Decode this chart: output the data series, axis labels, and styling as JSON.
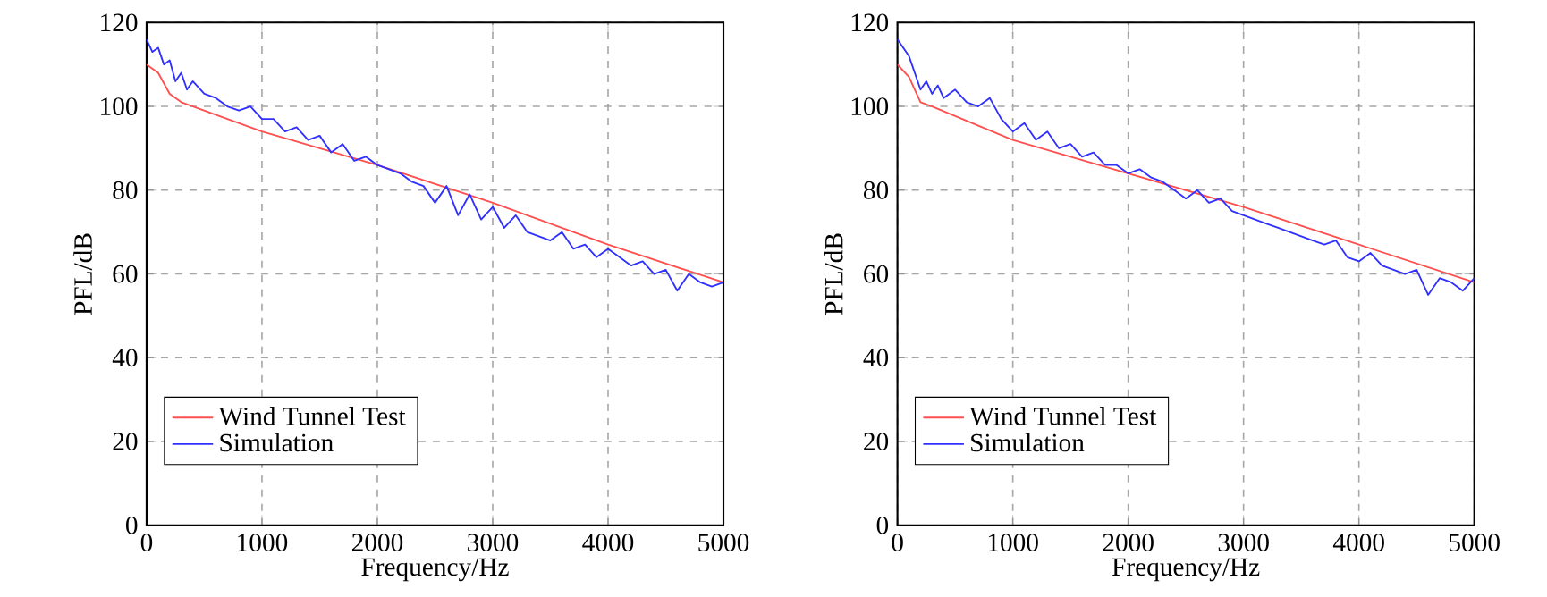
{
  "chart_data": [
    {
      "type": "line",
      "xlabel": "Frequency/Hz",
      "ylabel": "PFL/dB",
      "xlim": [
        0,
        5000
      ],
      "ylim": [
        0,
        120
      ],
      "xticks": [
        0,
        1000,
        2000,
        3000,
        4000,
        5000
      ],
      "yticks": [
        0,
        20,
        40,
        60,
        80,
        100,
        120
      ],
      "grid": true,
      "legend": "bottom left",
      "series": [
        {
          "name": "Wind Tunnel Test",
          "color": "#ff5050",
          "x": [
            0,
            100,
            200,
            300,
            1000,
            2000,
            3000,
            4000,
            5000
          ],
          "values": [
            110,
            108,
            103,
            101,
            94,
            86,
            77,
            67,
            58
          ]
        },
        {
          "name": "Simulation",
          "color": "#3030ff",
          "x": [
            0,
            50,
            100,
            150,
            200,
            250,
            300,
            350,
            400,
            500,
            600,
            700,
            800,
            900,
            1000,
            1100,
            1200,
            1300,
            1400,
            1500,
            1600,
            1700,
            1800,
            1900,
            2000,
            2100,
            2200,
            2300,
            2400,
            2500,
            2600,
            2700,
            2800,
            2900,
            3000,
            3100,
            3200,
            3300,
            3400,
            3500,
            3600,
            3700,
            3800,
            3900,
            4000,
            4100,
            4200,
            4300,
            4400,
            4500,
            4600,
            4700,
            4800,
            4900,
            5000
          ],
          "values": [
            116,
            113,
            114,
            110,
            111,
            106,
            108,
            104,
            106,
            103,
            102,
            100,
            99,
            100,
            97,
            97,
            94,
            95,
            92,
            93,
            89,
            91,
            87,
            88,
            86,
            85,
            84,
            82,
            81,
            77,
            81,
            74,
            79,
            73,
            76,
            71,
            74,
            70,
            69,
            68,
            70,
            66,
            67,
            64,
            66,
            64,
            62,
            63,
            60,
            61,
            56,
            60,
            58,
            57,
            58
          ]
        }
      ]
    },
    {
      "type": "line",
      "xlabel": "Frequency/Hz",
      "ylabel": "PFL/dB",
      "xlim": [
        0,
        5000
      ],
      "ylim": [
        0,
        120
      ],
      "xticks": [
        0,
        1000,
        2000,
        3000,
        4000,
        5000
      ],
      "yticks": [
        0,
        20,
        40,
        60,
        80,
        100,
        120
      ],
      "grid": true,
      "legend": "bottom left",
      "series": [
        {
          "name": "Wind Tunnel Test",
          "color": "#ff5050",
          "x": [
            0,
            100,
            200,
            300,
            1000,
            2000,
            3000,
            4000,
            5000
          ],
          "values": [
            110,
            107,
            101,
            100,
            92,
            84,
            76,
            67,
            58
          ]
        },
        {
          "name": "Simulation",
          "color": "#3030ff",
          "x": [
            0,
            50,
            100,
            150,
            200,
            250,
            300,
            350,
            400,
            500,
            600,
            700,
            800,
            900,
            1000,
            1100,
            1200,
            1300,
            1400,
            1500,
            1600,
            1700,
            1800,
            1900,
            2000,
            2100,
            2200,
            2300,
            2400,
            2500,
            2600,
            2700,
            2800,
            2900,
            3000,
            3100,
            3200,
            3300,
            3400,
            3500,
            3600,
            3700,
            3800,
            3900,
            4000,
            4100,
            4200,
            4300,
            4400,
            4500,
            4600,
            4700,
            4800,
            4900,
            5000
          ],
          "values": [
            116,
            114,
            112,
            108,
            104,
            106,
            103,
            105,
            102,
            104,
            101,
            100,
            102,
            97,
            94,
            96,
            92,
            94,
            90,
            91,
            88,
            89,
            86,
            86,
            84,
            85,
            83,
            82,
            80,
            78,
            80,
            77,
            78,
            75,
            74,
            73,
            72,
            71,
            70,
            69,
            68,
            67,
            68,
            64,
            63,
            65,
            62,
            61,
            60,
            61,
            55,
            59,
            58,
            56,
            59
          ]
        }
      ]
    }
  ]
}
